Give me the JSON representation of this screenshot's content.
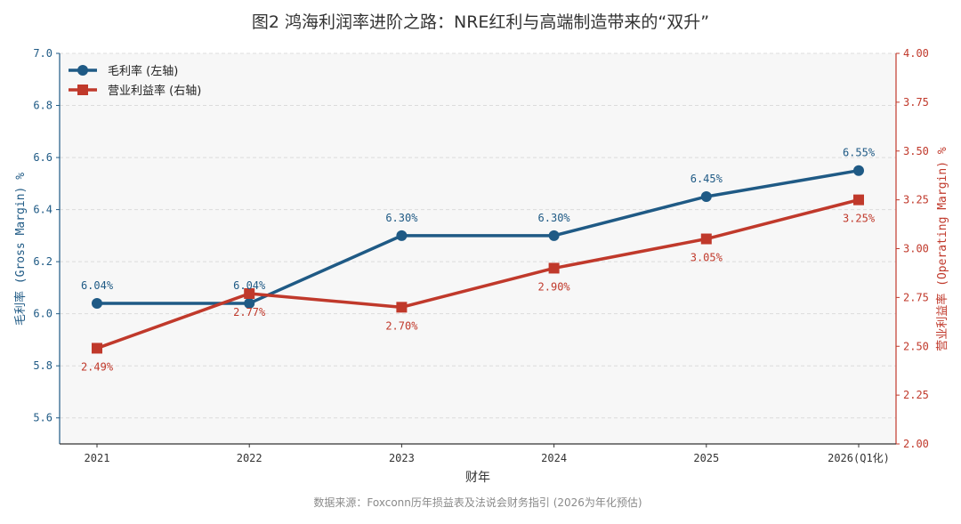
{
  "chart_data": {
    "type": "line",
    "title": "图2 鸿海利润率进阶之路：NRE红利与高端制造带来的“双升”",
    "xlabel": "财年",
    "categories": [
      "2021",
      "2022",
      "2023",
      "2024",
      "2025",
      "2026(Q1化)"
    ],
    "y_left": {
      "label": "毛利率 (Gross Margin) %",
      "lim": [
        5.5,
        7.0
      ],
      "ticks": [
        "5.6",
        "5.8",
        "6.0",
        "6.2",
        "6.4",
        "6.6",
        "6.8",
        "7.0"
      ]
    },
    "y_right": {
      "label": "营业利益率 (Operating Margin) %",
      "lim": [
        2.0,
        4.0
      ],
      "ticks": [
        "2.00",
        "2.25",
        "2.50",
        "2.75",
        "3.00",
        "3.25",
        "3.50",
        "3.75",
        "4.00"
      ]
    },
    "series": [
      {
        "name": "毛利率 (左轴)",
        "axis": "left",
        "marker": "circle",
        "color": "#1f5a85",
        "values": [
          6.04,
          6.04,
          6.3,
          6.3,
          6.45,
          6.55
        ],
        "labels": [
          "6.04%",
          "6.04%",
          "6.30%",
          "6.30%",
          "6.45%",
          "6.55%"
        ]
      },
      {
        "name": "营业利益率 (右轴)",
        "axis": "right",
        "marker": "square",
        "color": "#c0392b",
        "values": [
          2.49,
          2.77,
          2.7,
          2.9,
          3.05,
          3.25
        ],
        "labels": [
          "2.49%",
          "2.77%",
          "2.70%",
          "2.90%",
          "3.05%",
          "3.25%"
        ]
      }
    ],
    "legend": "top-left",
    "grid": true,
    "source": "数据来源：Foxconn历年损益表及法说会财务指引 (2026为年化预估)"
  }
}
